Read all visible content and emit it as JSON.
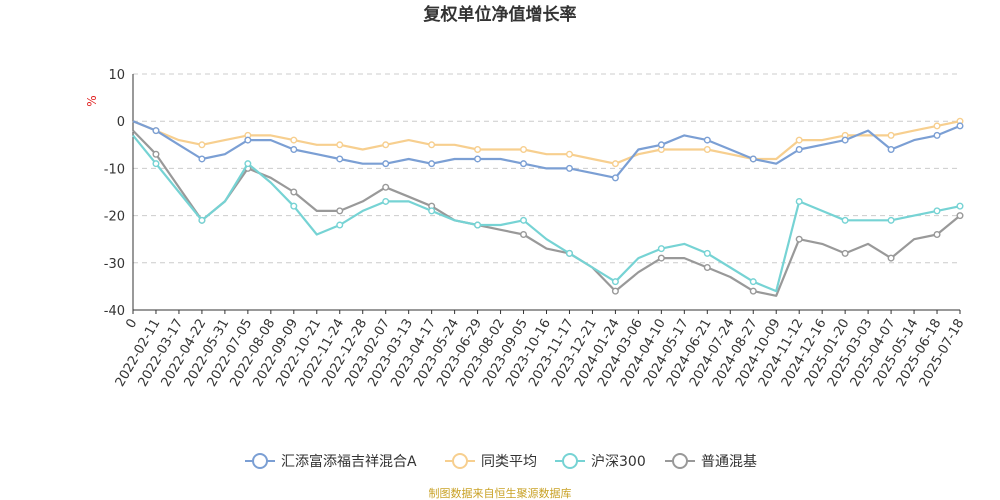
{
  "chart_data": {
    "type": "line",
    "title": "复权单位净值增长率",
    "ylabel": "%",
    "xlabel": "",
    "ylim": [
      -40,
      10
    ],
    "yticks": [
      10,
      0,
      -10,
      -20,
      -30,
      -40
    ],
    "grid": true,
    "legend_position": "bottom",
    "x_ticks": [
      "0",
      "2022-02-11",
      "2022-03-17",
      "2022-04-22",
      "2022-05-31",
      "2022-07-05",
      "2022-08-08",
      "2022-09-09",
      "2022-10-21",
      "2022-11-24",
      "2022-12-28",
      "2023-02-07",
      "2023-03-13",
      "2023-04-17",
      "2023-05-24",
      "2023-06-29",
      "2023-08-02",
      "2023-09-05",
      "2023-10-16",
      "2023-11-17",
      "2023-12-21",
      "2024-01-24",
      "2024-03-06",
      "2024-04-10",
      "2024-05-17",
      "2024-06-21",
      "2024-07-24",
      "2024-08-27",
      "2024-10-09",
      "2024-11-12",
      "2024-12-16",
      "2025-01-20",
      "2025-03-03",
      "2025-04-07",
      "2025-05-14",
      "2025-06-18",
      "2025-07-18"
    ],
    "series": [
      {
        "name": "汇添富添福吉祥混合A",
        "color": "#7b9fd4",
        "values": [
          0,
          -2,
          -5,
          -8,
          -7,
          -4,
          -4,
          -6,
          -7,
          -8,
          -9,
          -9,
          -8,
          -9,
          -8,
          -8,
          -8,
          -9,
          -10,
          -10,
          -11,
          -12,
          -6,
          -5,
          -3,
          -4,
          -6,
          -8,
          -9,
          -6,
          -5,
          -4,
          -2,
          -6,
          -4,
          -3,
          -1
        ]
      },
      {
        "name": "同类平均",
        "color": "#f7cf8f",
        "values": [
          0,
          -2,
          -4,
          -5,
          -4,
          -3,
          -3,
          -4,
          -5,
          -5,
          -6,
          -5,
          -4,
          -5,
          -5,
          -6,
          -6,
          -6,
          -7,
          -7,
          -8,
          -9,
          -7,
          -6,
          -6,
          -6,
          -7,
          -8,
          -8,
          -4,
          -4,
          -3,
          -3,
          -3,
          -2,
          -1,
          0
        ]
      },
      {
        "name": "沪深300",
        "color": "#76d3d4",
        "values": [
          -3,
          -9,
          -15,
          -21,
          -17,
          -9,
          -13,
          -18,
          -24,
          -22,
          -19,
          -17,
          -17,
          -19,
          -21,
          -22,
          -22,
          -21,
          -25,
          -28,
          -31,
          -34,
          -29,
          -27,
          -26,
          -28,
          -31,
          -34,
          -36,
          -17,
          -19,
          -21,
          -21,
          -21,
          -20,
          -19,
          -18
        ]
      },
      {
        "name": "普通混基",
        "color": "#999999",
        "values": [
          -2,
          -7,
          -14,
          -21,
          -17,
          -10,
          -12,
          -15,
          -19,
          -19,
          -17,
          -14,
          -16,
          -18,
          -21,
          -22,
          -23,
          -24,
          -27,
          -28,
          -31,
          -36,
          -32,
          -29,
          -29,
          -31,
          -33,
          -36,
          -37,
          -25,
          -26,
          -28,
          -26,
          -29,
          -25,
          -24,
          -20
        ]
      }
    ]
  },
  "footer": {
    "source": "制图数据来自恒生聚源数据库"
  }
}
